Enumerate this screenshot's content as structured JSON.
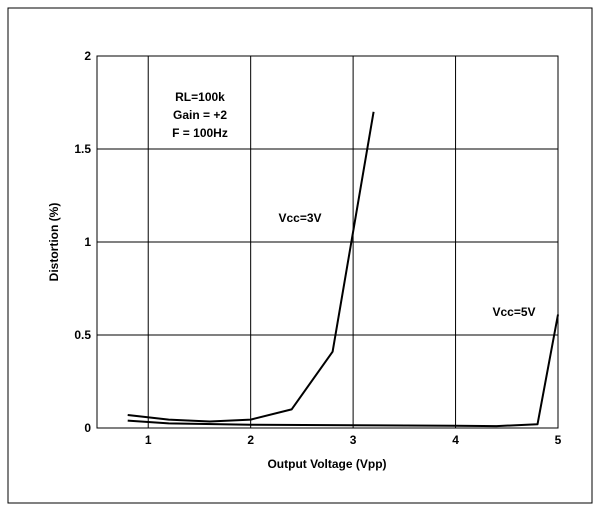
{
  "chart_data": {
    "type": "line",
    "xlabel": "Output Voltage (Vpp)",
    "ylabel": "Distortion (%)",
    "xlim": [
      0.5,
      5
    ],
    "ylim": [
      0,
      2
    ],
    "xticks": [
      1,
      2,
      3,
      4,
      5
    ],
    "yticks": [
      0,
      0.5,
      1,
      1.5,
      2
    ],
    "xtick_labels": [
      "1",
      "2",
      "3",
      "4",
      "5"
    ],
    "ytick_labels": [
      "0",
      "0.5",
      "1",
      "1.5",
      "2"
    ],
    "grid": true,
    "legend": "none",
    "conditions": [
      "RL=100k",
      "Gain = +2",
      "F = 100Hz"
    ],
    "series": [
      {
        "name": "Vcc=3V",
        "x": [
          0.8,
          1.2,
          1.6,
          2.0,
          2.4,
          2.8,
          3.2
        ],
        "y": [
          0.07,
          0.045,
          0.035,
          0.045,
          0.1,
          0.41,
          1.7
        ]
      },
      {
        "name": "Vcc=5V",
        "x": [
          0.8,
          1.2,
          2.0,
          3.0,
          4.0,
          4.4,
          4.8,
          5.0
        ],
        "y": [
          0.04,
          0.025,
          0.018,
          0.015,
          0.012,
          0.01,
          0.02,
          0.61
        ]
      }
    ]
  }
}
